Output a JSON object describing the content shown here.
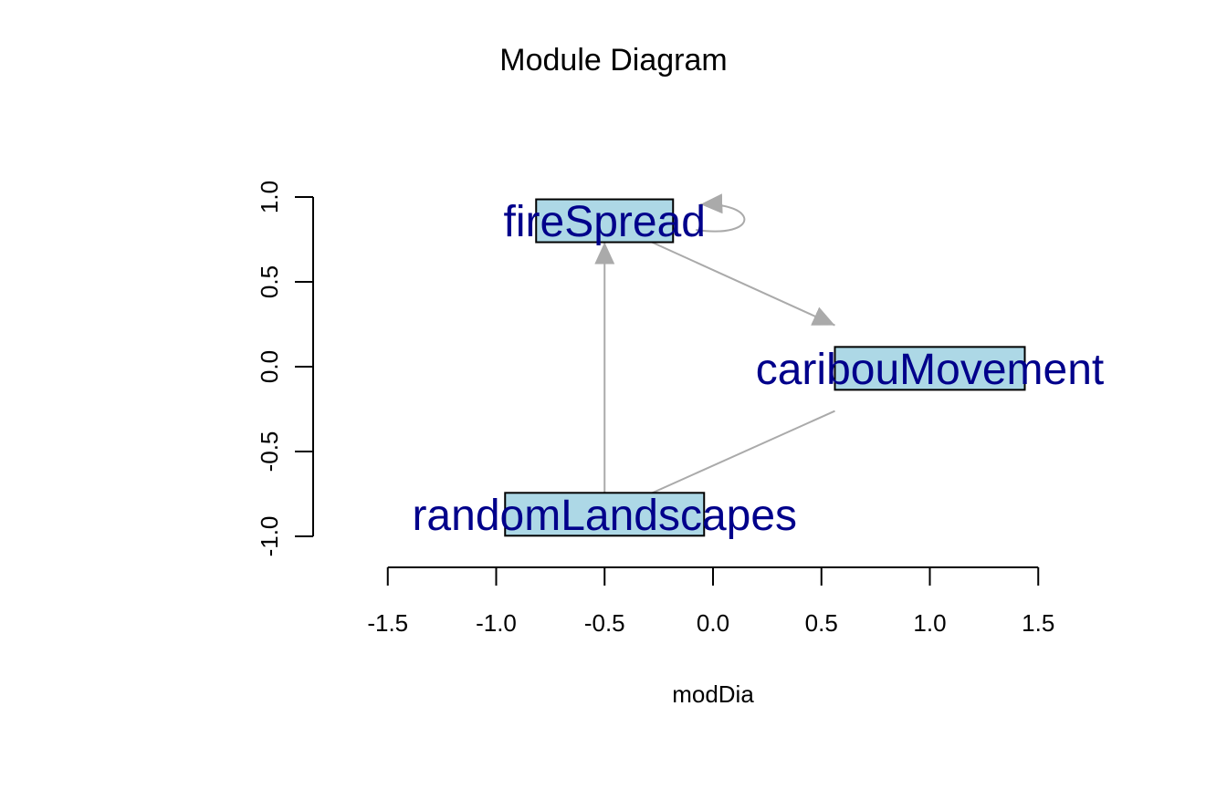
{
  "title": "Module Diagram",
  "colors": {
    "node_fill": "#add8e6",
    "node_stroke": "#000000",
    "node_text": "#00008b",
    "edge": "#aaaaaa",
    "axis": "#000000"
  },
  "chart_data": {
    "type": "network",
    "xlabel": "modDia",
    "ylabel": "",
    "xlim": [
      -1.5,
      1.5
    ],
    "ylim": [
      -1.0,
      1.0
    ],
    "x_ticks": [
      "-1.5",
      "-1.0",
      "-0.5",
      "0.0",
      "0.5",
      "1.0",
      "1.5"
    ],
    "y_ticks": [
      "-1.0",
      "-0.5",
      "0.0",
      "0.5",
      "1.0"
    ],
    "nodes": [
      {
        "name": "fireSpread",
        "x": -0.5,
        "y": 0.86
      },
      {
        "name": "caribouMovement",
        "x": 1.0,
        "y": -0.01
      },
      {
        "name": "randomLandscapes",
        "x": -0.5,
        "y": -0.87
      }
    ],
    "edges": [
      {
        "from": "randomLandscapes",
        "to": "fireSpread"
      },
      {
        "from": "randomLandscapes",
        "to": "caribouMovement"
      },
      {
        "from": "fireSpread",
        "to": "caribouMovement"
      },
      {
        "from": "fireSpread",
        "to": "fireSpread"
      }
    ]
  }
}
